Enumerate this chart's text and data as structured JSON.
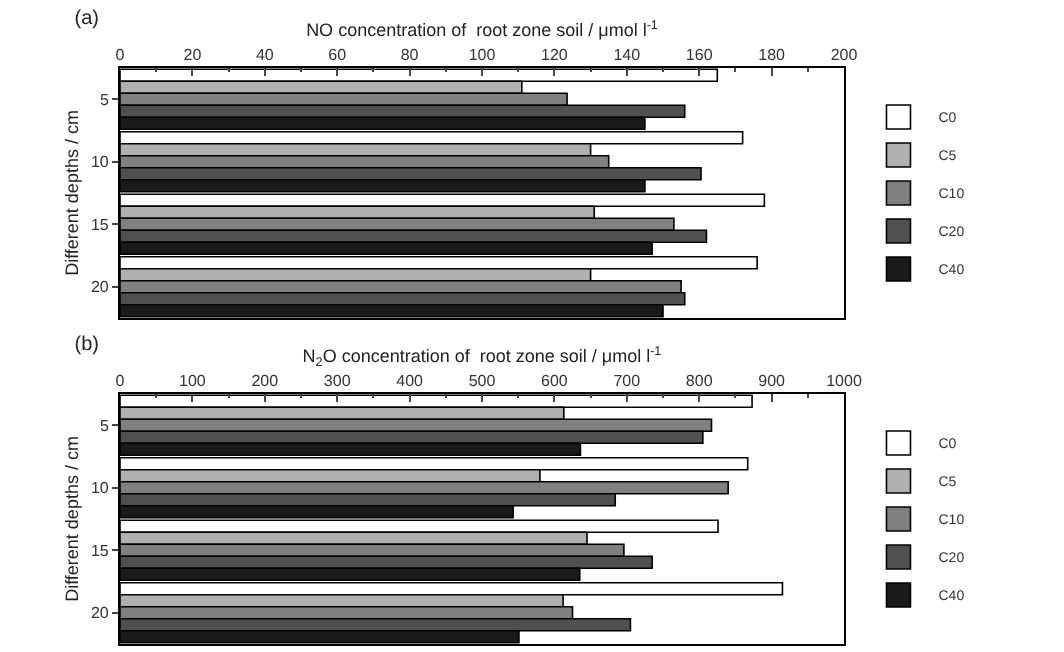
{
  "chart_data": [
    {
      "type": "bar",
      "orientation": "horizontal",
      "title": "(a)",
      "xlabel": "NO concentration of  root zone soil / μmol l$^{-1}$",
      "ylabel": "Different depths / cm",
      "categories": [
        "5",
        "10",
        "15",
        "20"
      ],
      "xlim": [
        0,
        200
      ],
      "xticks": [
        0,
        20,
        40,
        60,
        80,
        100,
        120,
        140,
        160,
        180,
        200
      ],
      "grid": false,
      "legend": "right",
      "series": [
        {
          "name": "C0",
          "color": "#ffffff",
          "values": [
            165,
            172,
            178,
            176
          ]
        },
        {
          "name": "C5",
          "color": "#b0b0b0",
          "values": [
            111,
            130,
            131,
            130
          ]
        },
        {
          "name": "C10",
          "color": "#808080",
          "values": [
            123.5,
            135,
            153,
            155
          ]
        },
        {
          "name": "C20",
          "color": "#505050",
          "values": [
            156,
            160.5,
            162,
            156
          ]
        },
        {
          "name": "C40",
          "color": "#1a1a1a",
          "values": [
            145,
            145,
            147,
            150
          ]
        }
      ]
    },
    {
      "type": "bar",
      "orientation": "horizontal",
      "title": "(b)",
      "xlabel": "N$_{2}$O concentration of  root zone soil / μmol l$^{-1}$",
      "ylabel": "Different depths / cm",
      "categories": [
        "5",
        "10",
        "15",
        "20"
      ],
      "xlim": [
        0,
        1000
      ],
      "xticks": [
        0,
        100,
        200,
        300,
        400,
        500,
        600,
        700,
        800,
        900,
        1000
      ],
      "grid": false,
      "legend": "right",
      "series": [
        {
          "name": "C0",
          "color": "#ffffff",
          "values": [
            873,
            867,
            826,
            915
          ]
        },
        {
          "name": "C5",
          "color": "#b0b0b0",
          "values": [
            613,
            580,
            645,
            612
          ]
        },
        {
          "name": "C10",
          "color": "#808080",
          "values": [
            817,
            840,
            696,
            625
          ]
        },
        {
          "name": "C20",
          "color": "#505050",
          "values": [
            805,
            684,
            735,
            705
          ]
        },
        {
          "name": "C40",
          "color": "#1a1a1a",
          "values": [
            636,
            543,
            635,
            551
          ]
        }
      ]
    }
  ]
}
